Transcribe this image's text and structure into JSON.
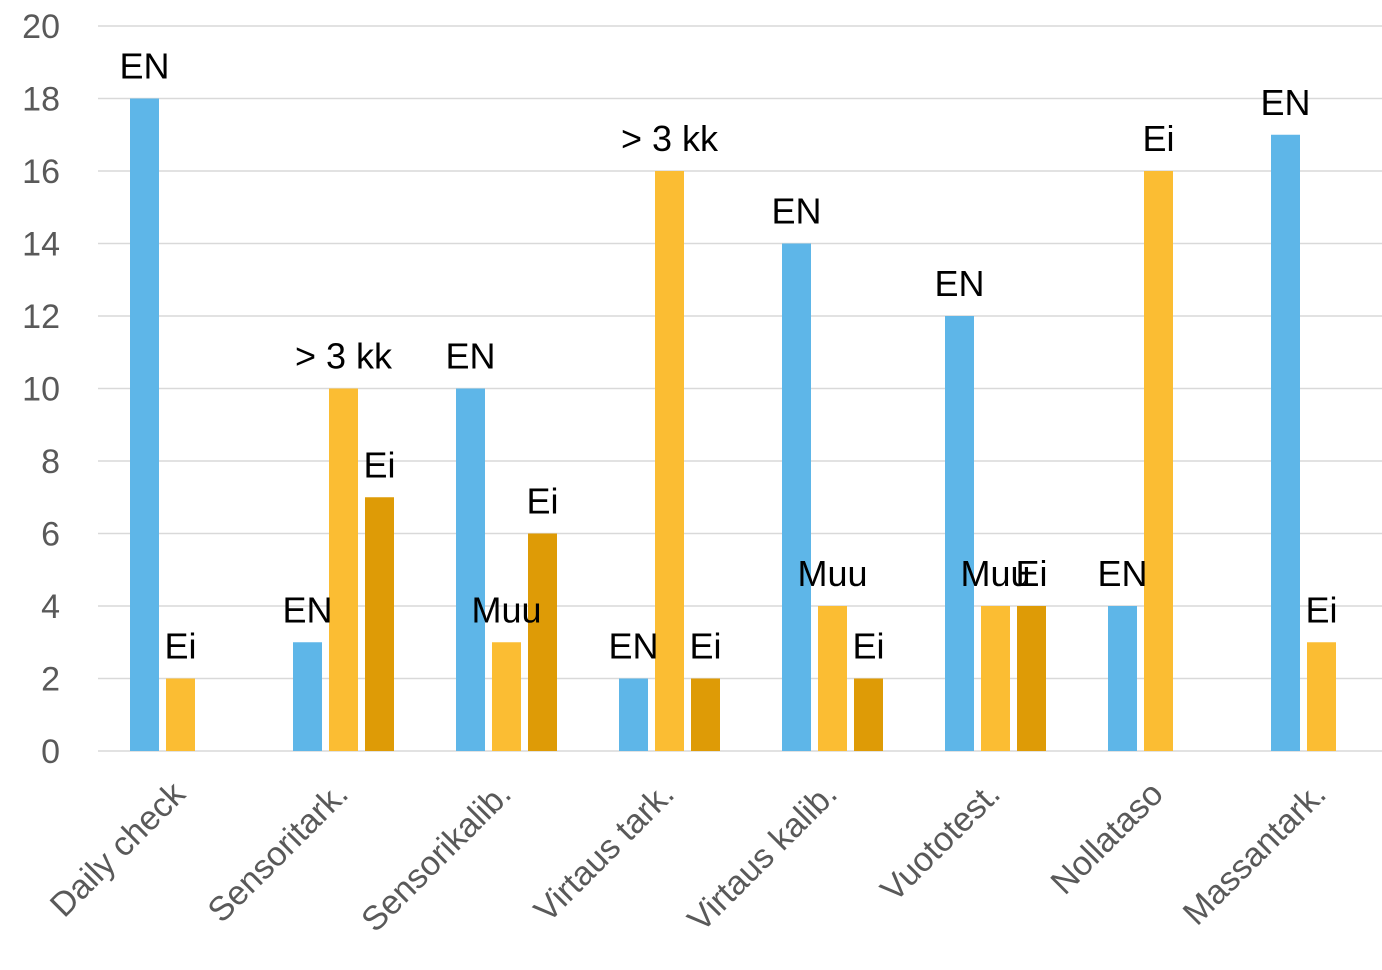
{
  "chart_data": {
    "type": "bar",
    "title": "",
    "xlabel": "",
    "ylabel": "",
    "ylim": [
      0,
      20
    ],
    "yticks": [
      0,
      2,
      4,
      6,
      8,
      10,
      12,
      14,
      16,
      18,
      20
    ],
    "grid": true,
    "legend": "none",
    "categories": [
      "Daily check",
      "Sensoritark.",
      "Sensorikalib.",
      "Virtaus tark.",
      "Virtaus kalib.",
      "Vuototest.",
      "Nollataso",
      "Massantark."
    ],
    "series": [
      {
        "color": "#5EB6E8",
        "values": [
          18,
          3,
          10,
          2,
          14,
          12,
          4,
          17
        ],
        "labels": [
          "EN",
          "EN",
          "EN",
          "EN",
          "EN",
          "EN",
          "EN",
          "EN"
        ]
      },
      {
        "color": "#FBBD33",
        "values": [
          2,
          10,
          3,
          16,
          4,
          4,
          16,
          3
        ],
        "labels": [
          "Ei",
          "> 3 kk",
          "Muu",
          "> 3 kk",
          "Muu",
          "Muu",
          "Ei",
          "Ei"
        ]
      },
      {
        "color": "#DE9B06",
        "values": [
          null,
          7,
          6,
          2,
          2,
          4,
          null,
          null
        ],
        "labels": [
          null,
          "Ei",
          "Ei",
          "Ei",
          "Ei",
          "Ei",
          null,
          null
        ]
      }
    ]
  }
}
